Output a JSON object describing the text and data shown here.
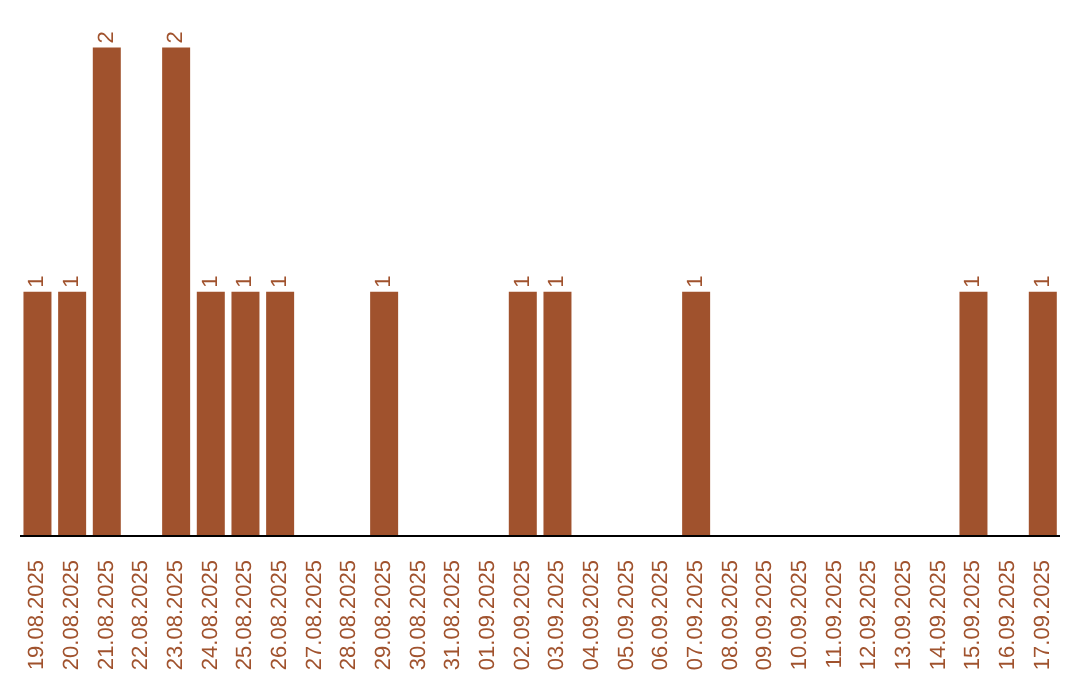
{
  "chart_data": {
    "type": "bar",
    "categories": [
      "19.08.2025",
      "20.08.2025",
      "21.08.2025",
      "22.08.2025",
      "23.08.2025",
      "24.08.2025",
      "25.08.2025",
      "26.08.2025",
      "27.08.2025",
      "28.08.2025",
      "29.08.2025",
      "30.08.2025",
      "31.08.2025",
      "01.09.2025",
      "02.09.2025",
      "03.09.2025",
      "04.09.2025",
      "05.09.2025",
      "06.09.2025",
      "07.09.2025",
      "08.09.2025",
      "09.09.2025",
      "10.09.2025",
      "11.09.2025",
      "12.09.2025",
      "13.09.2025",
      "14.09.2025",
      "15.09.2025",
      "16.09.2025",
      "17.09.2025"
    ],
    "values": [
      1,
      1,
      2,
      0,
      2,
      1,
      1,
      1,
      0,
      0,
      1,
      0,
      0,
      0,
      1,
      1,
      0,
      0,
      0,
      1,
      0,
      0,
      0,
      0,
      0,
      0,
      0,
      1,
      0,
      1
    ],
    "value_labels": [
      "1",
      "1",
      "2",
      null,
      "2",
      "1",
      "1",
      "1",
      null,
      null,
      "1",
      null,
      null,
      null,
      "1",
      "1",
      null,
      null,
      null,
      "1",
      null,
      null,
      null,
      null,
      null,
      null,
      null,
      "1",
      null,
      "1"
    ],
    "color": "#a0522d",
    "grid": false,
    "legend": false
  }
}
